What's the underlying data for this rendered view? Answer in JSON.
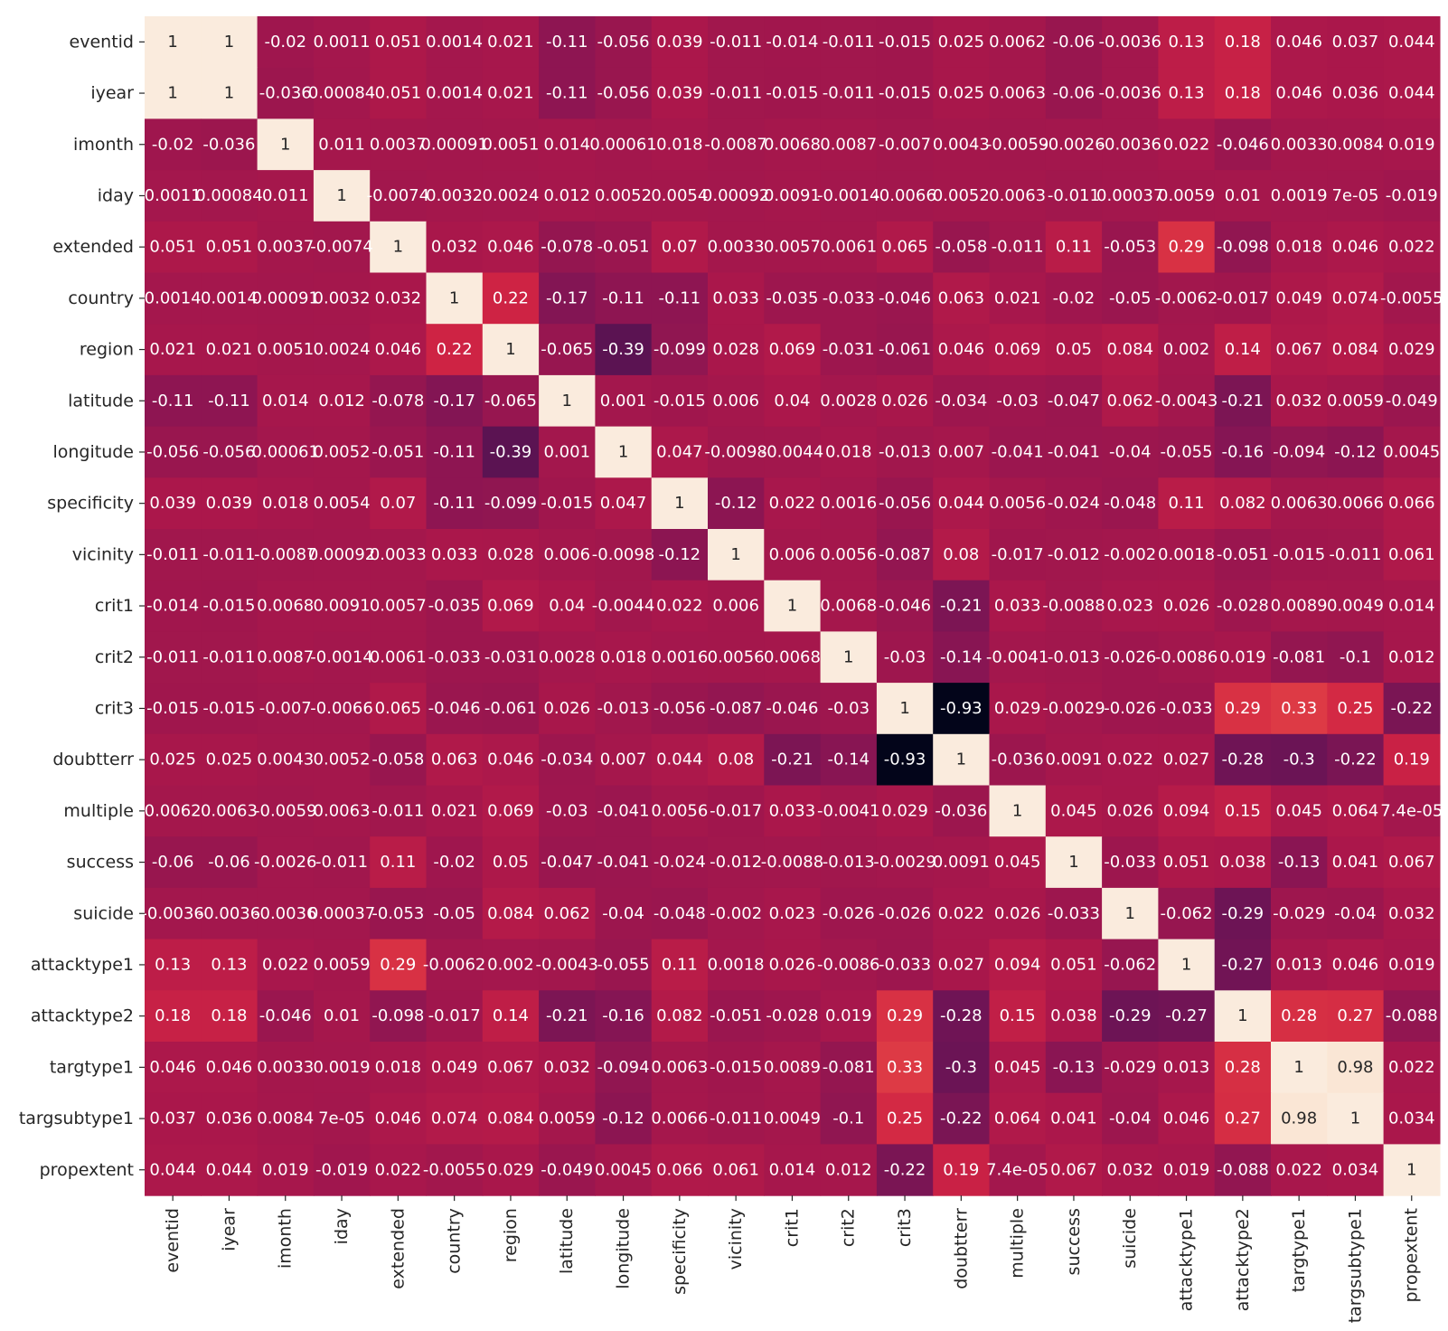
{
  "chart_data": {
    "type": "heatmap",
    "colormap": "rocket",
    "vmin": -0.93,
    "vmax": 1,
    "colorbar": false,
    "rows": [
      "eventid",
      "iyear",
      "imonth",
      "iday",
      "extended",
      "country",
      "region",
      "latitude",
      "longitude",
      "specificity",
      "vicinity",
      "crit1",
      "crit2",
      "crit3",
      "doubtterr",
      "multiple",
      "success",
      "suicide",
      "attacktype1",
      "attacktype2",
      "targtype1",
      "targsubtype1",
      "propextent"
    ],
    "columns": [
      "eventid",
      "iyear",
      "imonth",
      "iday",
      "extended",
      "country",
      "region",
      "latitude",
      "longitude",
      "specificity",
      "vicinity",
      "crit1",
      "crit2",
      "crit3",
      "doubtterr",
      "multiple",
      "success",
      "suicide",
      "attacktype1",
      "attacktype2",
      "targtype1",
      "targsubtype1",
      "propextent"
    ],
    "values": [
      [
        1,
        1,
        -0.02,
        0.0011,
        0.051,
        0.0014,
        0.021,
        -0.11,
        -0.056,
        0.039,
        -0.011,
        -0.014,
        -0.011,
        -0.015,
        0.025,
        0.0062,
        -0.06,
        -0.0036,
        0.13,
        0.18,
        0.046,
        0.037,
        0.044
      ],
      [
        1,
        1,
        -0.036,
        0.00084,
        0.051,
        0.0014,
        0.021,
        -0.11,
        -0.056,
        0.039,
        -0.011,
        -0.015,
        -0.011,
        -0.015,
        0.025,
        0.0063,
        -0.06,
        -0.0036,
        0.13,
        0.18,
        0.046,
        0.036,
        0.044
      ],
      [
        -0.02,
        -0.036,
        1,
        0.011,
        0.0037,
        0.00091,
        0.0051,
        0.014,
        0.00061,
        0.018,
        -0.0087,
        0.0068,
        0.0087,
        -0.007,
        0.0043,
        -0.0059,
        -0.0026,
        -0.0036,
        0.022,
        -0.046,
        0.0033,
        0.0084,
        0.019
      ],
      [
        0.0011,
        0.00084,
        0.011,
        1,
        -0.0074,
        0.0032,
        0.0024,
        0.012,
        0.0052,
        0.0054,
        0.00092,
        0.0091,
        -0.0014,
        -0.0066,
        0.0052,
        0.0063,
        -0.011,
        0.00037,
        0.0059,
        0.01,
        0.0019,
        7e-05,
        -0.019
      ],
      [
        0.051,
        0.051,
        0.0037,
        -0.0074,
        1,
        0.032,
        0.046,
        -0.078,
        -0.051,
        0.07,
        0.0033,
        0.0057,
        0.0061,
        0.065,
        -0.058,
        -0.011,
        0.11,
        -0.053,
        0.29,
        -0.098,
        0.018,
        0.046,
        0.022
      ],
      [
        0.0014,
        0.0014,
        0.00091,
        0.0032,
        0.032,
        1,
        0.22,
        -0.17,
        -0.11,
        -0.11,
        0.033,
        -0.035,
        -0.033,
        -0.046,
        0.063,
        0.021,
        -0.02,
        -0.05,
        -0.0062,
        -0.017,
        0.049,
        0.074,
        -0.0055
      ],
      [
        0.021,
        0.021,
        0.0051,
        0.0024,
        0.046,
        0.22,
        1,
        -0.065,
        -0.39,
        -0.099,
        0.028,
        0.069,
        -0.031,
        -0.061,
        0.046,
        0.069,
        0.05,
        0.084,
        0.002,
        0.14,
        0.067,
        0.084,
        0.029
      ],
      [
        -0.11,
        -0.11,
        0.014,
        0.012,
        -0.078,
        -0.17,
        -0.065,
        1,
        0.001,
        -0.015,
        0.006,
        0.04,
        0.0028,
        0.026,
        -0.034,
        -0.03,
        -0.047,
        0.062,
        -0.0043,
        -0.21,
        0.032,
        0.0059,
        -0.049
      ],
      [
        -0.056,
        -0.056,
        0.00061,
        0.0052,
        -0.051,
        -0.11,
        -0.39,
        0.001,
        1,
        0.047,
        -0.0098,
        -0.0044,
        0.018,
        -0.013,
        0.007,
        -0.041,
        -0.041,
        -0.04,
        -0.055,
        -0.16,
        -0.094,
        -0.12,
        0.0045
      ],
      [
        0.039,
        0.039,
        0.018,
        0.0054,
        0.07,
        -0.11,
        -0.099,
        -0.015,
        0.047,
        1,
        -0.12,
        0.022,
        0.0016,
        -0.056,
        0.044,
        0.0056,
        -0.024,
        -0.048,
        0.11,
        0.082,
        0.0063,
        0.0066,
        0.066
      ],
      [
        -0.011,
        -0.011,
        -0.0087,
        0.00092,
        0.0033,
        0.033,
        0.028,
        0.006,
        -0.0098,
        -0.12,
        1,
        0.006,
        0.0056,
        -0.087,
        0.08,
        -0.017,
        -0.012,
        -0.002,
        0.0018,
        -0.051,
        -0.015,
        -0.011,
        0.061
      ],
      [
        -0.014,
        -0.015,
        0.0068,
        0.0091,
        0.0057,
        -0.035,
        0.069,
        0.04,
        -0.0044,
        0.022,
        0.006,
        1,
        0.0068,
        -0.046,
        -0.21,
        0.033,
        -0.0088,
        0.023,
        0.026,
        -0.028,
        0.0089,
        0.0049,
        0.014
      ],
      [
        -0.011,
        -0.011,
        0.0087,
        -0.0014,
        0.0061,
        -0.033,
        -0.031,
        0.0028,
        0.018,
        0.0016,
        0.0056,
        0.0068,
        1,
        -0.03,
        -0.14,
        -0.0041,
        -0.013,
        -0.026,
        -0.0086,
        0.019,
        -0.081,
        -0.1,
        0.012
      ],
      [
        -0.015,
        -0.015,
        -0.007,
        -0.0066,
        0.065,
        -0.046,
        -0.061,
        0.026,
        -0.013,
        -0.056,
        -0.087,
        -0.046,
        -0.03,
        1,
        -0.93,
        0.029,
        -0.0029,
        -0.026,
        -0.033,
        0.29,
        0.33,
        0.25,
        -0.22
      ],
      [
        0.025,
        0.025,
        0.0043,
        0.0052,
        -0.058,
        0.063,
        0.046,
        -0.034,
        0.007,
        0.044,
        0.08,
        -0.21,
        -0.14,
        -0.93,
        1,
        -0.036,
        0.0091,
        0.022,
        0.027,
        -0.28,
        -0.3,
        -0.22,
        0.19
      ],
      [
        0.0062,
        0.0063,
        -0.0059,
        0.0063,
        -0.011,
        0.021,
        0.069,
        -0.03,
        -0.041,
        0.0056,
        -0.017,
        0.033,
        -0.0041,
        0.029,
        -0.036,
        1,
        0.045,
        0.026,
        0.094,
        0.15,
        0.045,
        0.064,
        7.4e-05
      ],
      [
        -0.06,
        -0.06,
        -0.0026,
        -0.011,
        0.11,
        -0.02,
        0.05,
        -0.047,
        -0.041,
        -0.024,
        -0.012,
        -0.0088,
        -0.013,
        -0.0029,
        0.0091,
        0.045,
        1,
        -0.033,
        0.051,
        0.038,
        -0.13,
        0.041,
        0.067
      ],
      [
        -0.0036,
        -0.0036,
        -0.0036,
        0.00037,
        -0.053,
        -0.05,
        0.084,
        0.062,
        -0.04,
        -0.048,
        -0.002,
        0.023,
        -0.026,
        -0.026,
        0.022,
        0.026,
        -0.033,
        1,
        -0.062,
        -0.29,
        -0.029,
        -0.04,
        0.032
      ],
      [
        0.13,
        0.13,
        0.022,
        0.0059,
        0.29,
        -0.0062,
        0.002,
        -0.0043,
        -0.055,
        0.11,
        0.0018,
        0.026,
        -0.0086,
        -0.033,
        0.027,
        0.094,
        0.051,
        -0.062,
        1,
        -0.27,
        0.013,
        0.046,
        0.019
      ],
      [
        0.18,
        0.18,
        -0.046,
        0.01,
        -0.098,
        -0.017,
        0.14,
        -0.21,
        -0.16,
        0.082,
        -0.051,
        -0.028,
        0.019,
        0.29,
        -0.28,
        0.15,
        0.038,
        -0.29,
        -0.27,
        1,
        0.28,
        0.27,
        -0.088
      ],
      [
        0.046,
        0.046,
        0.0033,
        0.0019,
        0.018,
        0.049,
        0.067,
        0.032,
        -0.094,
        0.0063,
        -0.015,
        0.0089,
        -0.081,
        0.33,
        -0.3,
        0.045,
        -0.13,
        -0.029,
        0.013,
        0.28,
        1,
        0.98,
        0.022
      ],
      [
        0.037,
        0.036,
        0.0084,
        7e-05,
        0.046,
        0.074,
        0.084,
        0.0059,
        -0.12,
        0.0066,
        -0.011,
        0.0049,
        -0.1,
        0.25,
        -0.22,
        0.064,
        0.041,
        -0.04,
        0.046,
        0.27,
        0.98,
        1,
        0.034
      ],
      [
        0.044,
        0.044,
        0.019,
        -0.019,
        0.022,
        -0.0055,
        0.029,
        -0.049,
        0.0045,
        0.066,
        0.061,
        0.014,
        0.012,
        -0.22,
        0.19,
        7.4e-05,
        0.067,
        0.032,
        0.019,
        -0.088,
        0.022,
        0.034,
        1
      ]
    ],
    "cell_labels": [
      [
        "1",
        "1",
        "-0.02",
        "0.0011",
        "0.051",
        "0.0014",
        "0.021",
        "-0.11",
        "-0.056",
        "0.039",
        "-0.011",
        "-0.014",
        "-0.011",
        "-0.015",
        "0.025",
        "0.0062",
        "-0.06",
        "-0.0036",
        "0.13",
        "0.18",
        "0.046",
        "0.037",
        "0.044"
      ],
      [
        "1",
        "1",
        "-0.036",
        "0.00084",
        "0.051",
        "0.0014",
        "0.021",
        "-0.11",
        "-0.056",
        "0.039",
        "-0.011",
        "-0.015",
        "-0.011",
        "-0.015",
        "0.025",
        "0.0063",
        "-0.06",
        "-0.0036",
        "0.13",
        "0.18",
        "0.046",
        "0.036",
        "0.044"
      ],
      [
        "-0.02",
        "-0.036",
        "1",
        "0.011",
        "0.0037",
        "0.00091",
        "0.0051",
        "0.014",
        "0.00061",
        "0.018",
        "-0.0087",
        "0.0068",
        "0.0087",
        "-0.007",
        "0.0043",
        "-0.0059",
        "-0.0026",
        "-0.0036",
        "0.022",
        "-0.046",
        "0.0033",
        "0.0084",
        "0.019"
      ],
      [
        "0.0011",
        "0.00084",
        "0.011",
        "1",
        "-0.0074",
        "0.0032",
        "0.0024",
        "0.012",
        "0.0052",
        "0.0054",
        "0.00092",
        "0.0091",
        "-0.0014",
        "-0.0066",
        "0.0052",
        "0.0063",
        "-0.011",
        "0.00037",
        "0.0059",
        "0.01",
        "0.0019",
        "7e-05",
        "-0.019"
      ],
      [
        "0.051",
        "0.051",
        "0.0037",
        "-0.0074",
        "1",
        "0.032",
        "0.046",
        "-0.078",
        "-0.051",
        "0.07",
        "0.0033",
        "0.0057",
        "0.0061",
        "0.065",
        "-0.058",
        "-0.011",
        "0.11",
        "-0.053",
        "0.29",
        "-0.098",
        "0.018",
        "0.046",
        "0.022"
      ],
      [
        "0.0014",
        "0.0014",
        "0.00091",
        "0.0032",
        "0.032",
        "1",
        "0.22",
        "-0.17",
        "-0.11",
        "-0.11",
        "0.033",
        "-0.035",
        "-0.033",
        "-0.046",
        "0.063",
        "0.021",
        "-0.02",
        "-0.05",
        "-0.0062",
        "-0.017",
        "0.049",
        "0.074",
        "-0.0055"
      ],
      [
        "0.021",
        "0.021",
        "0.0051",
        "0.0024",
        "0.046",
        "0.22",
        "1",
        "-0.065",
        "-0.39",
        "-0.099",
        "0.028",
        "0.069",
        "-0.031",
        "-0.061",
        "0.046",
        "0.069",
        "0.05",
        "0.084",
        "0.002",
        "0.14",
        "0.067",
        "0.084",
        "0.029"
      ],
      [
        "-0.11",
        "-0.11",
        "0.014",
        "0.012",
        "-0.078",
        "-0.17",
        "-0.065",
        "1",
        "0.001",
        "-0.015",
        "0.006",
        "0.04",
        "0.0028",
        "0.026",
        "-0.034",
        "-0.03",
        "-0.047",
        "0.062",
        "-0.0043",
        "-0.21",
        "0.032",
        "0.0059",
        "-0.049"
      ],
      [
        "-0.056",
        "-0.056",
        "0.00061",
        "0.0052",
        "-0.051",
        "-0.11",
        "-0.39",
        "0.001",
        "1",
        "0.047",
        "-0.0098",
        "-0.0044",
        "0.018",
        "-0.013",
        "0.007",
        "-0.041",
        "-0.041",
        "-0.04",
        "-0.055",
        "-0.16",
        "-0.094",
        "-0.12",
        "0.0045"
      ],
      [
        "0.039",
        "0.039",
        "0.018",
        "0.0054",
        "0.07",
        "-0.11",
        "-0.099",
        "-0.015",
        "0.047",
        "1",
        "-0.12",
        "0.022",
        "0.0016",
        "-0.056",
        "0.044",
        "0.0056",
        "-0.024",
        "-0.048",
        "0.11",
        "0.082",
        "0.0063",
        "0.0066",
        "0.066"
      ],
      [
        "-0.011",
        "-0.011",
        "-0.0087",
        "0.00092",
        "0.0033",
        "0.033",
        "0.028",
        "0.006",
        "-0.0098",
        "-0.12",
        "1",
        "0.006",
        "0.0056",
        "-0.087",
        "0.08",
        "-0.017",
        "-0.012",
        "-0.002",
        "0.0018",
        "-0.051",
        "-0.015",
        "-0.011",
        "0.061"
      ],
      [
        "-0.014",
        "-0.015",
        "0.0068",
        "0.0091",
        "0.0057",
        "-0.035",
        "0.069",
        "0.04",
        "-0.0044",
        "0.022",
        "0.006",
        "1",
        "0.0068",
        "-0.046",
        "-0.21",
        "0.033",
        "-0.0088",
        "0.023",
        "0.026",
        "-0.028",
        "0.0089",
        "0.0049",
        "0.014"
      ],
      [
        "-0.011",
        "-0.011",
        "0.0087",
        "-0.0014",
        "0.0061",
        "-0.033",
        "-0.031",
        "0.0028",
        "0.018",
        "0.0016",
        "0.0056",
        "0.0068",
        "1",
        "-0.03",
        "-0.14",
        "-0.0041",
        "-0.013",
        "-0.026",
        "-0.0086",
        "0.019",
        "-0.081",
        "-0.1",
        "0.012"
      ],
      [
        "-0.015",
        "-0.015",
        "-0.007",
        "-0.0066",
        "0.065",
        "-0.046",
        "-0.061",
        "0.026",
        "-0.013",
        "-0.056",
        "-0.087",
        "-0.046",
        "-0.03",
        "1",
        "-0.93",
        "0.029",
        "-0.0029",
        "-0.026",
        "-0.033",
        "0.29",
        "0.33",
        "0.25",
        "-0.22"
      ],
      [
        "0.025",
        "0.025",
        "0.0043",
        "0.0052",
        "-0.058",
        "0.063",
        "0.046",
        "-0.034",
        "0.007",
        "0.044",
        "0.08",
        "-0.21",
        "-0.14",
        "-0.93",
        "1",
        "-0.036",
        "0.0091",
        "0.022",
        "0.027",
        "-0.28",
        "-0.3",
        "-0.22",
        "0.19"
      ],
      [
        "0.0062",
        "0.0063",
        "-0.0059",
        "0.0063",
        "-0.011",
        "0.021",
        "0.069",
        "-0.03",
        "-0.041",
        "0.0056",
        "-0.017",
        "0.033",
        "-0.0041",
        "0.029",
        "-0.036",
        "1",
        "0.045",
        "0.026",
        "0.094",
        "0.15",
        "0.045",
        "0.064",
        "7.4e-05"
      ],
      [
        "-0.06",
        "-0.06",
        "-0.0026",
        "-0.011",
        "0.11",
        "-0.02",
        "0.05",
        "-0.047",
        "-0.041",
        "-0.024",
        "-0.012",
        "-0.0088",
        "-0.013",
        "-0.0029",
        "0.0091",
        "0.045",
        "1",
        "-0.033",
        "0.051",
        "0.038",
        "-0.13",
        "0.041",
        "0.067"
      ],
      [
        "-0.0036",
        "-0.0036",
        "-0.0036",
        "0.00037",
        "-0.053",
        "-0.05",
        "0.084",
        "0.062",
        "-0.04",
        "-0.048",
        "-0.002",
        "0.023",
        "-0.026",
        "-0.026",
        "0.022",
        "0.026",
        "-0.033",
        "1",
        "-0.062",
        "-0.29",
        "-0.029",
        "-0.04",
        "0.032"
      ],
      [
        "0.13",
        "0.13",
        "0.022",
        "0.0059",
        "0.29",
        "-0.0062",
        "0.002",
        "-0.0043",
        "-0.055",
        "0.11",
        "0.0018",
        "0.026",
        "-0.0086",
        "-0.033",
        "0.027",
        "0.094",
        "0.051",
        "-0.062",
        "1",
        "-0.27",
        "0.013",
        "0.046",
        "0.019"
      ],
      [
        "0.18",
        "0.18",
        "-0.046",
        "0.01",
        "-0.098",
        "-0.017",
        "0.14",
        "-0.21",
        "-0.16",
        "0.082",
        "-0.051",
        "-0.028",
        "0.019",
        "0.29",
        "-0.28",
        "0.15",
        "0.038",
        "-0.29",
        "-0.27",
        "1",
        "0.28",
        "0.27",
        "-0.088"
      ],
      [
        "0.046",
        "0.046",
        "0.0033",
        "0.0019",
        "0.018",
        "0.049",
        "0.067",
        "0.032",
        "-0.094",
        "0.0063",
        "-0.015",
        "0.0089",
        "-0.081",
        "0.33",
        "-0.3",
        "0.045",
        "-0.13",
        "-0.029",
        "0.013",
        "0.28",
        "1",
        "0.98",
        "0.022"
      ],
      [
        "0.037",
        "0.036",
        "0.0084",
        "7e-05",
        "0.046",
        "0.074",
        "0.084",
        "0.0059",
        "-0.12",
        "0.0066",
        "-0.011",
        "0.0049",
        "-0.1",
        "0.25",
        "-0.22",
        "0.064",
        "0.041",
        "-0.04",
        "0.046",
        "0.27",
        "0.98",
        "1",
        "0.034"
      ],
      [
        "0.044",
        "0.044",
        "0.019",
        "-0.019",
        "0.022",
        "-0.0055",
        "0.029",
        "-0.049",
        "0.0045",
        "0.066",
        "0.061",
        "0.014",
        "0.012",
        "-0.22",
        "0.19",
        "7.4e-05",
        "0.067",
        "0.032",
        "0.019",
        "-0.088",
        "0.022",
        "0.034",
        "1"
      ]
    ]
  }
}
